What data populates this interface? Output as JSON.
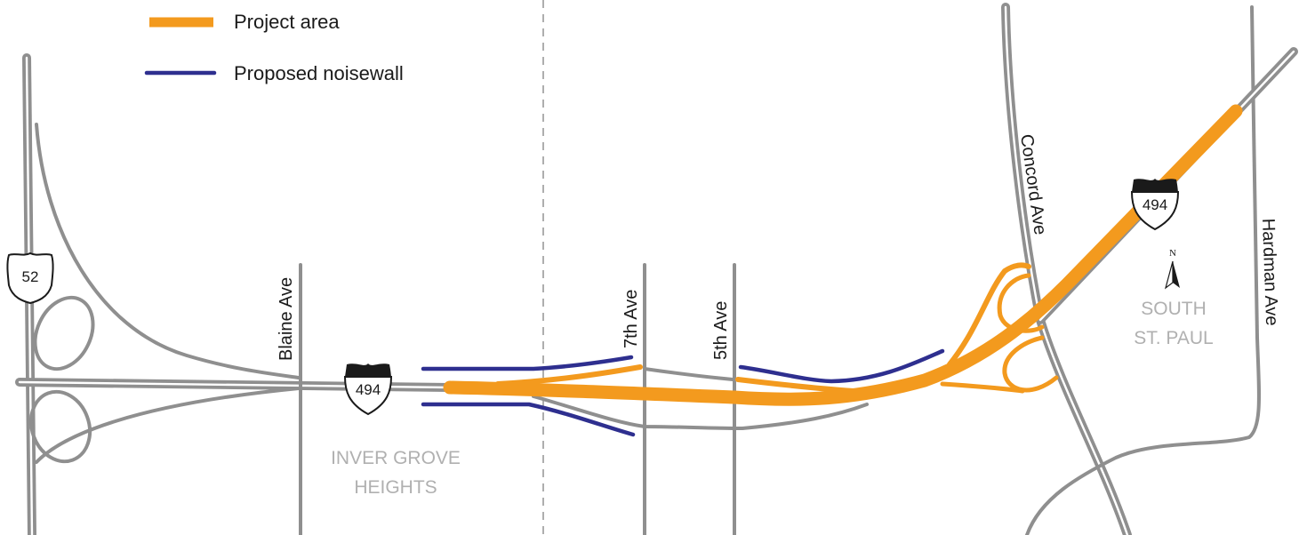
{
  "legend": {
    "project_area": "Project area",
    "proposed_noisewall": "Proposed noisewall"
  },
  "streets": {
    "blaine": "Blaine Ave",
    "seventh": "7th Ave",
    "fifth": "5th Ave",
    "concord": "Concord Ave",
    "hardman": "Hardman Ave"
  },
  "shields": {
    "us52": "52",
    "i494_west": "494",
    "i494_east": "494"
  },
  "cities": {
    "inver_grove_line1": "INVER GROVE",
    "inver_grove_line2": "HEIGHTS",
    "south_st_paul_line1": "SOUTH",
    "south_st_paul_line2": "ST. PAUL"
  },
  "north_arrow": {
    "label": "N"
  },
  "colors": {
    "project_area": "#f39a1e",
    "noisewall": "#2e2f8f",
    "road": "#8f8f8f",
    "city_label": "#b0b0b0"
  }
}
